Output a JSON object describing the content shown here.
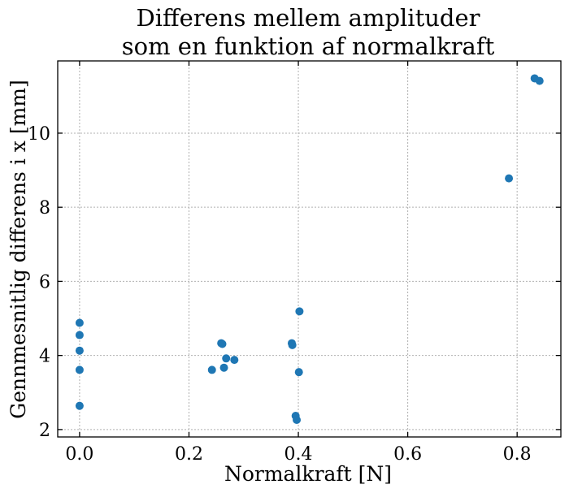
{
  "chart_data": {
    "type": "scatter",
    "title": [
      "Differens mellem amplituder",
      "som en funktion af normalkraft"
    ],
    "xlabel": "Normalkraft [N]",
    "ylabel": "Gennmesnitlig differens i x [mm]",
    "xlim": [
      -0.04,
      0.88
    ],
    "ylim": [
      1.8,
      11.95
    ],
    "xticks": [
      0.0,
      0.2,
      0.4,
      0.6,
      0.8
    ],
    "xtick_labels": [
      "0.0",
      "0.2",
      "0.4",
      "0.6",
      "0.8"
    ],
    "yticks": [
      2,
      4,
      6,
      8,
      10
    ],
    "ytick_labels": [
      "2",
      "4",
      "6",
      "8",
      "10"
    ],
    "grid": true,
    "marker_color": "#1f77b4",
    "series": [
      {
        "x": [
          0.0,
          0.0,
          0.0,
          0.0,
          0.0,
          0.242,
          0.259,
          0.261,
          0.264,
          0.268,
          0.283,
          0.388,
          0.389,
          0.395,
          0.397,
          0.401,
          0.402,
          0.785,
          0.832,
          0.841
        ],
        "y": [
          4.88,
          4.55,
          4.13,
          3.61,
          2.64,
          3.61,
          4.33,
          4.31,
          3.67,
          3.92,
          3.88,
          4.33,
          4.28,
          2.37,
          2.26,
          3.55,
          5.19,
          8.78,
          11.48,
          11.41
        ]
      }
    ]
  }
}
